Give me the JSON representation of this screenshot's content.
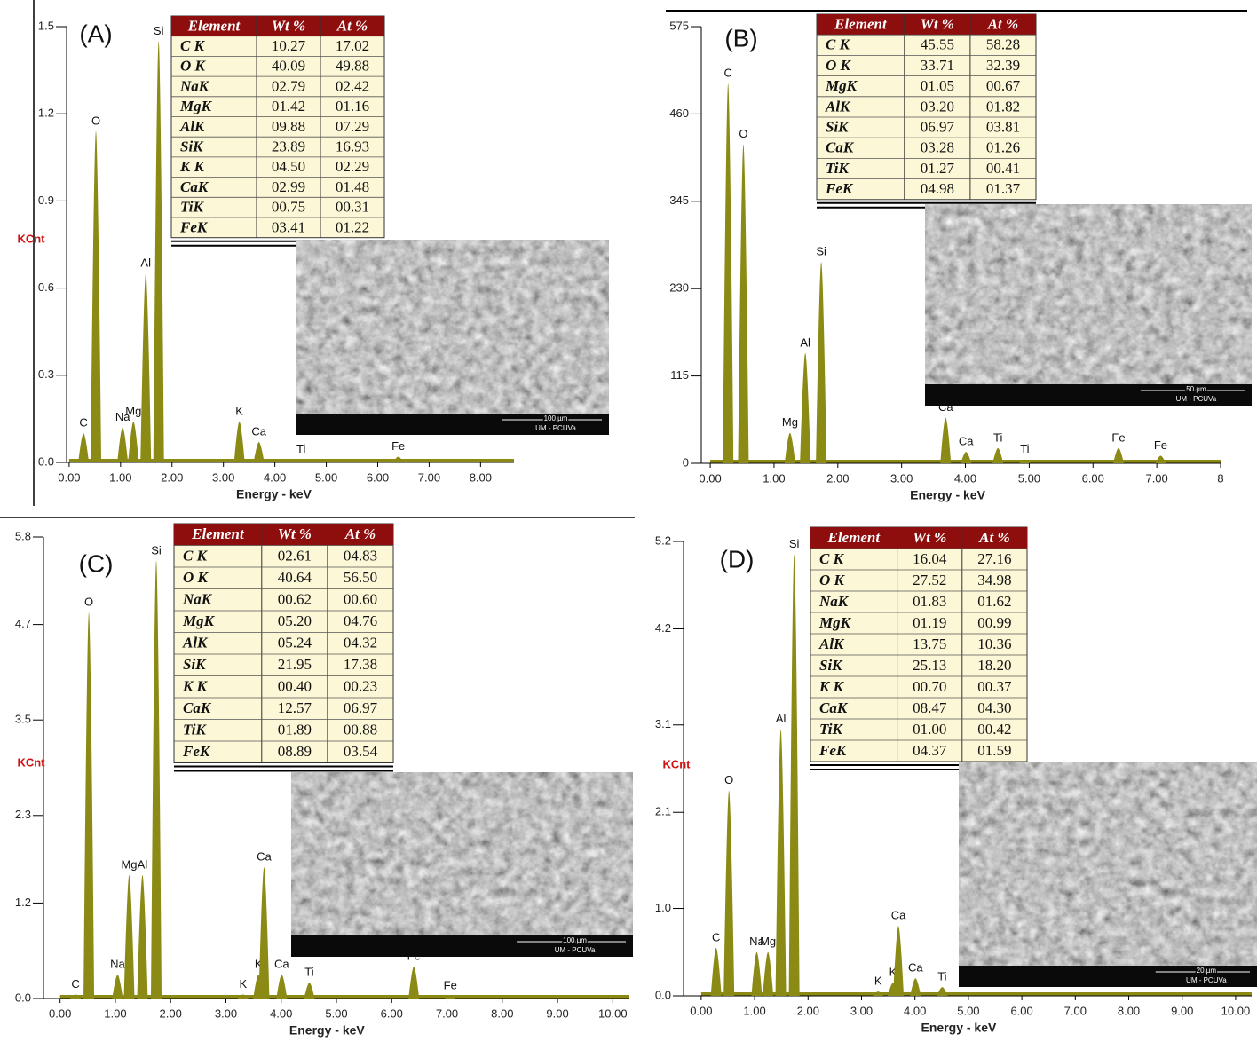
{
  "chart_data": [
    {
      "type": "spectrum",
      "panel": "(A)",
      "ylabel": "KCnt",
      "xlabel": "Energy - keV",
      "color": "#8a8a14",
      "xlim": [
        -0.05,
        8.65
      ],
      "ylim": [
        0,
        1.5
      ],
      "yticks": [
        {
          "value": 0,
          "label": "0.0"
        },
        0.3,
        0.6,
        0.9,
        1.2,
        1.5
      ],
      "xticks": [
        {
          "value": 0,
          "label": "0.00"
        },
        {
          "value": 1,
          "label": "1.00"
        },
        {
          "value": 2,
          "label": "2.00"
        },
        {
          "value": 3,
          "label": "3.00"
        },
        {
          "value": 4,
          "label": "4.00"
        },
        {
          "value": 5,
          "label": "5.00"
        },
        {
          "value": 6,
          "label": "6.00"
        },
        {
          "value": 7,
          "label": "7.00"
        },
        {
          "value": 8,
          "label": "8.00"
        }
      ],
      "labels": [
        "C",
        "O",
        "Na",
        "Mg",
        "Al",
        "Si",
        "K",
        "Ca",
        "Ti",
        "Fe"
      ],
      "x": [
        0.28,
        0.52,
        1.04,
        1.25,
        1.49,
        1.74,
        3.31,
        3.69,
        4.51,
        6.4
      ],
      "values": [
        0.1,
        1.14,
        0.12,
        0.14,
        0.65,
        1.45,
        0.14,
        0.07,
        0.01,
        0.02
      ],
      "table": {
        "columns": [
          "Element",
          "Wt %",
          "At %"
        ],
        "rows": [
          [
            "C K",
            "10.27",
            "17.02"
          ],
          [
            "O K",
            "40.09",
            "49.88"
          ],
          [
            "NaK",
            "02.79",
            "02.42"
          ],
          [
            "MgK",
            "01.42",
            "01.16"
          ],
          [
            "AlK",
            "09.88",
            "07.29"
          ],
          [
            "SiK",
            "23.89",
            "16.93"
          ],
          [
            "K K",
            "04.50",
            "02.29"
          ],
          [
            "CaK",
            "02.99",
            "01.48"
          ],
          [
            "TiK",
            "00.75",
            "00.31"
          ],
          [
            "FeK",
            "03.41",
            "01.22"
          ]
        ]
      },
      "sem": {
        "scale": "100 µm",
        "lab": "UM - PCUVa"
      }
    },
    {
      "type": "spectrum",
      "panel": "(B)",
      "xlabel": "Energy - keV",
      "color": "#8a8a14",
      "xlim": [
        -0.14,
        8.0
      ],
      "ylim": [
        0,
        575
      ],
      "yticks": [
        0,
        115,
        230,
        345,
        460,
        575
      ],
      "xticks": [
        {
          "value": 0,
          "label": "0.00"
        },
        {
          "value": 1,
          "label": "1.00"
        },
        {
          "value": 2,
          "label": "2.00"
        },
        {
          "value": 3,
          "label": "3.00"
        },
        {
          "value": 4,
          "label": "4.00"
        },
        {
          "value": 5,
          "label": "5.00"
        },
        {
          "value": 6,
          "label": "6.00"
        },
        {
          "value": 7,
          "label": "7.00"
        },
        {
          "value": 8,
          "label": "8"
        }
      ],
      "labels": [
        "C",
        "O",
        "Mg",
        "Al",
        "Si",
        "Ca",
        "Ca",
        "Ti",
        "Ti",
        "Fe",
        "Fe"
      ],
      "x": [
        0.28,
        0.52,
        1.25,
        1.49,
        1.74,
        3.69,
        4.01,
        4.51,
        4.93,
        6.4,
        7.06
      ],
      "values": [
        500,
        420,
        40,
        145,
        265,
        60,
        15,
        20,
        5,
        20,
        10
      ],
      "table": {
        "columns": [
          "Element",
          "Wt %",
          "At %"
        ],
        "rows": [
          [
            "C K",
            "45.55",
            "58.28"
          ],
          [
            "O K",
            "33.71",
            "32.39"
          ],
          [
            "MgK",
            "01.05",
            "00.67"
          ],
          [
            "AlK",
            "03.20",
            "01.82"
          ],
          [
            "SiK",
            "06.97",
            "03.81"
          ],
          [
            "CaK",
            "03.28",
            "01.26"
          ],
          [
            "TiK",
            "01.27",
            "00.41"
          ],
          [
            "FeK",
            "04.98",
            "01.37"
          ]
        ]
      },
      "sem": {
        "scale": "50 µm",
        "lab": "UM - PCUVa"
      }
    },
    {
      "type": "spectrum",
      "panel": "(C)",
      "ylabel": "KCnt",
      "xlabel": "Energy - keV",
      "color": "#8a8a14",
      "xlim": [
        -0.3,
        10.3
      ],
      "ylim": [
        0,
        5.8
      ],
      "yticks": [
        {
          "value": 0,
          "label": "0.0"
        },
        1.2,
        2.3,
        3.5,
        4.7,
        5.8
      ],
      "xticks": [
        {
          "value": 0,
          "label": "0.00"
        },
        {
          "value": 1,
          "label": "1.00"
        },
        {
          "value": 2,
          "label": "2.00"
        },
        {
          "value": 3,
          "label": "3.00"
        },
        {
          "value": 4,
          "label": "4.00"
        },
        {
          "value": 5,
          "label": "5.00"
        },
        {
          "value": 6,
          "label": "6.00"
        },
        {
          "value": 7,
          "label": "7.00"
        },
        {
          "value": 8,
          "label": "8.00"
        },
        {
          "value": 9,
          "label": "9.00"
        },
        {
          "value": 10,
          "label": "10.00"
        }
      ],
      "labels": [
        "C",
        "O",
        "Na",
        "Mg",
        "Al",
        "Si",
        "K",
        "K",
        "Ca",
        "Ca",
        "Ti",
        "Fe",
        "Fe"
      ],
      "x": [
        0.28,
        0.52,
        1.04,
        1.25,
        1.49,
        1.74,
        3.31,
        3.59,
        3.69,
        4.01,
        4.51,
        6.4,
        7.06
      ],
      "values": [
        0.05,
        4.85,
        0.3,
        1.55,
        1.55,
        5.5,
        0.05,
        0.3,
        1.65,
        0.3,
        0.2,
        0.4,
        0.03
      ],
      "table": {
        "columns": [
          "Element",
          "Wt %",
          "At %"
        ],
        "rows": [
          [
            "C K",
            "02.61",
            "04.83"
          ],
          [
            "O K",
            "40.64",
            "56.50"
          ],
          [
            "NaK",
            "00.62",
            "00.60"
          ],
          [
            "MgK",
            "05.20",
            "04.76"
          ],
          [
            "AlK",
            "05.24",
            "04.32"
          ],
          [
            "SiK",
            "21.95",
            "17.38"
          ],
          [
            "K K",
            "00.40",
            "00.23"
          ],
          [
            "CaK",
            "12.57",
            "06.97"
          ],
          [
            "TiK",
            "01.89",
            "00.88"
          ],
          [
            "FeK",
            "08.89",
            "03.54"
          ]
        ]
      },
      "sem": {
        "scale": "100 µm",
        "lab": "UM - PCUVa"
      }
    },
    {
      "type": "spectrum",
      "panel": "(D)",
      "ylabel": "KCnt",
      "xlabel": "Energy - keV",
      "color": "#8a8a14",
      "xlim": [
        -0.33,
        10.3
      ],
      "ylim": [
        0,
        5.2
      ],
      "yticks": [
        {
          "value": 0,
          "label": "0.0"
        },
        {
          "value": 1,
          "label": "1.0"
        },
        2.1,
        3.1,
        4.2,
        5.2
      ],
      "xticks": [
        {
          "value": 0,
          "label": "0.00"
        },
        {
          "value": 1,
          "label": "1.00"
        },
        {
          "value": 2,
          "label": "2.00"
        },
        {
          "value": 3,
          "label": "3.00"
        },
        {
          "value": 4,
          "label": "4.00"
        },
        {
          "value": 5,
          "label": "5.00"
        },
        {
          "value": 6,
          "label": "6.00"
        },
        {
          "value": 7,
          "label": "7.00"
        },
        {
          "value": 8,
          "label": "8.00"
        },
        {
          "value": 9,
          "label": "9.00"
        },
        {
          "value": 10,
          "label": "10.00"
        }
      ],
      "labels": [
        "C",
        "O",
        "Na",
        "Mg",
        "Al",
        "Si",
        "K",
        "K",
        "Ca",
        "Ca",
        "Ti"
      ],
      "x": [
        0.28,
        0.52,
        1.04,
        1.25,
        1.49,
        1.74,
        3.31,
        3.59,
        3.69,
        4.01,
        4.51
      ],
      "values": [
        0.55,
        2.35,
        0.5,
        0.5,
        3.05,
        5.05,
        0.05,
        0.15,
        0.8,
        0.2,
        0.1
      ],
      "table": {
        "columns": [
          "Element",
          "Wt %",
          "At %"
        ],
        "rows": [
          [
            "C K",
            "16.04",
            "27.16"
          ],
          [
            "O K",
            "27.52",
            "34.98"
          ],
          [
            "NaK",
            "01.83",
            "01.62"
          ],
          [
            "MgK",
            "01.19",
            "00.99"
          ],
          [
            "AlK",
            "13.75",
            "10.36"
          ],
          [
            "SiK",
            "25.13",
            "18.20"
          ],
          [
            "K K",
            "00.70",
            "00.37"
          ],
          [
            "CaK",
            "08.47",
            "04.30"
          ],
          [
            "TiK",
            "01.00",
            "00.42"
          ],
          [
            "FeK",
            "04.37",
            "01.59"
          ]
        ]
      },
      "sem": {
        "scale": "20 µm",
        "lab": "UM - PCUVa"
      }
    }
  ]
}
